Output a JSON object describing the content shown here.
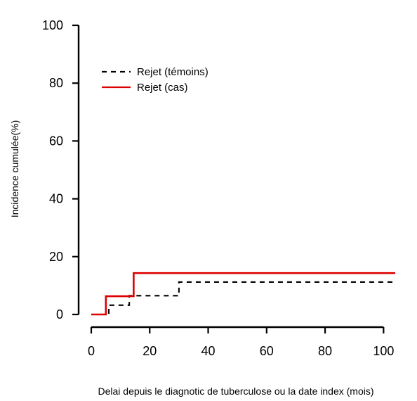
{
  "chart_data": {
    "type": "line",
    "xlabel": "Delai depuis le diagnotic de tuberculose ou la date index (mois)",
    "ylabel": "Incidence cumulée(%)",
    "xlim": [
      0,
      104
    ],
    "ylim": [
      0,
      100
    ],
    "x_ticks": [
      0,
      20,
      40,
      60,
      80,
      100
    ],
    "y_ticks": [
      0,
      20,
      40,
      60,
      80,
      100
    ],
    "x_tick_labels": [
      "0",
      "20",
      "40",
      "60",
      "80",
      "100"
    ],
    "y_tick_labels": [
      "0",
      "20",
      "40",
      "60",
      "80",
      "100"
    ],
    "grid": false,
    "legend_position": "top-left",
    "series": [
      {
        "name": "Rejet (témoins)",
        "color": "#000000",
        "line_style": "dashed",
        "step": true,
        "points": [
          {
            "x": 0,
            "y": 0
          },
          {
            "x": 6,
            "y": 0
          },
          {
            "x": 6,
            "y": 3.2
          },
          {
            "x": 13,
            "y": 3.2
          },
          {
            "x": 13,
            "y": 6.5
          },
          {
            "x": 30,
            "y": 6.5
          },
          {
            "x": 30,
            "y": 11.2
          },
          {
            "x": 104,
            "y": 11.2
          }
        ]
      },
      {
        "name": "Rejet (cas)",
        "color": "#dd0000",
        "line_style": "solid",
        "step": true,
        "points": [
          {
            "x": 0,
            "y": 0
          },
          {
            "x": 5,
            "y": 0
          },
          {
            "x": 5,
            "y": 6.3
          },
          {
            "x": 14.5,
            "y": 6.3
          },
          {
            "x": 14.5,
            "y": 14.3
          },
          {
            "x": 104,
            "y": 14.3
          }
        ]
      }
    ]
  }
}
